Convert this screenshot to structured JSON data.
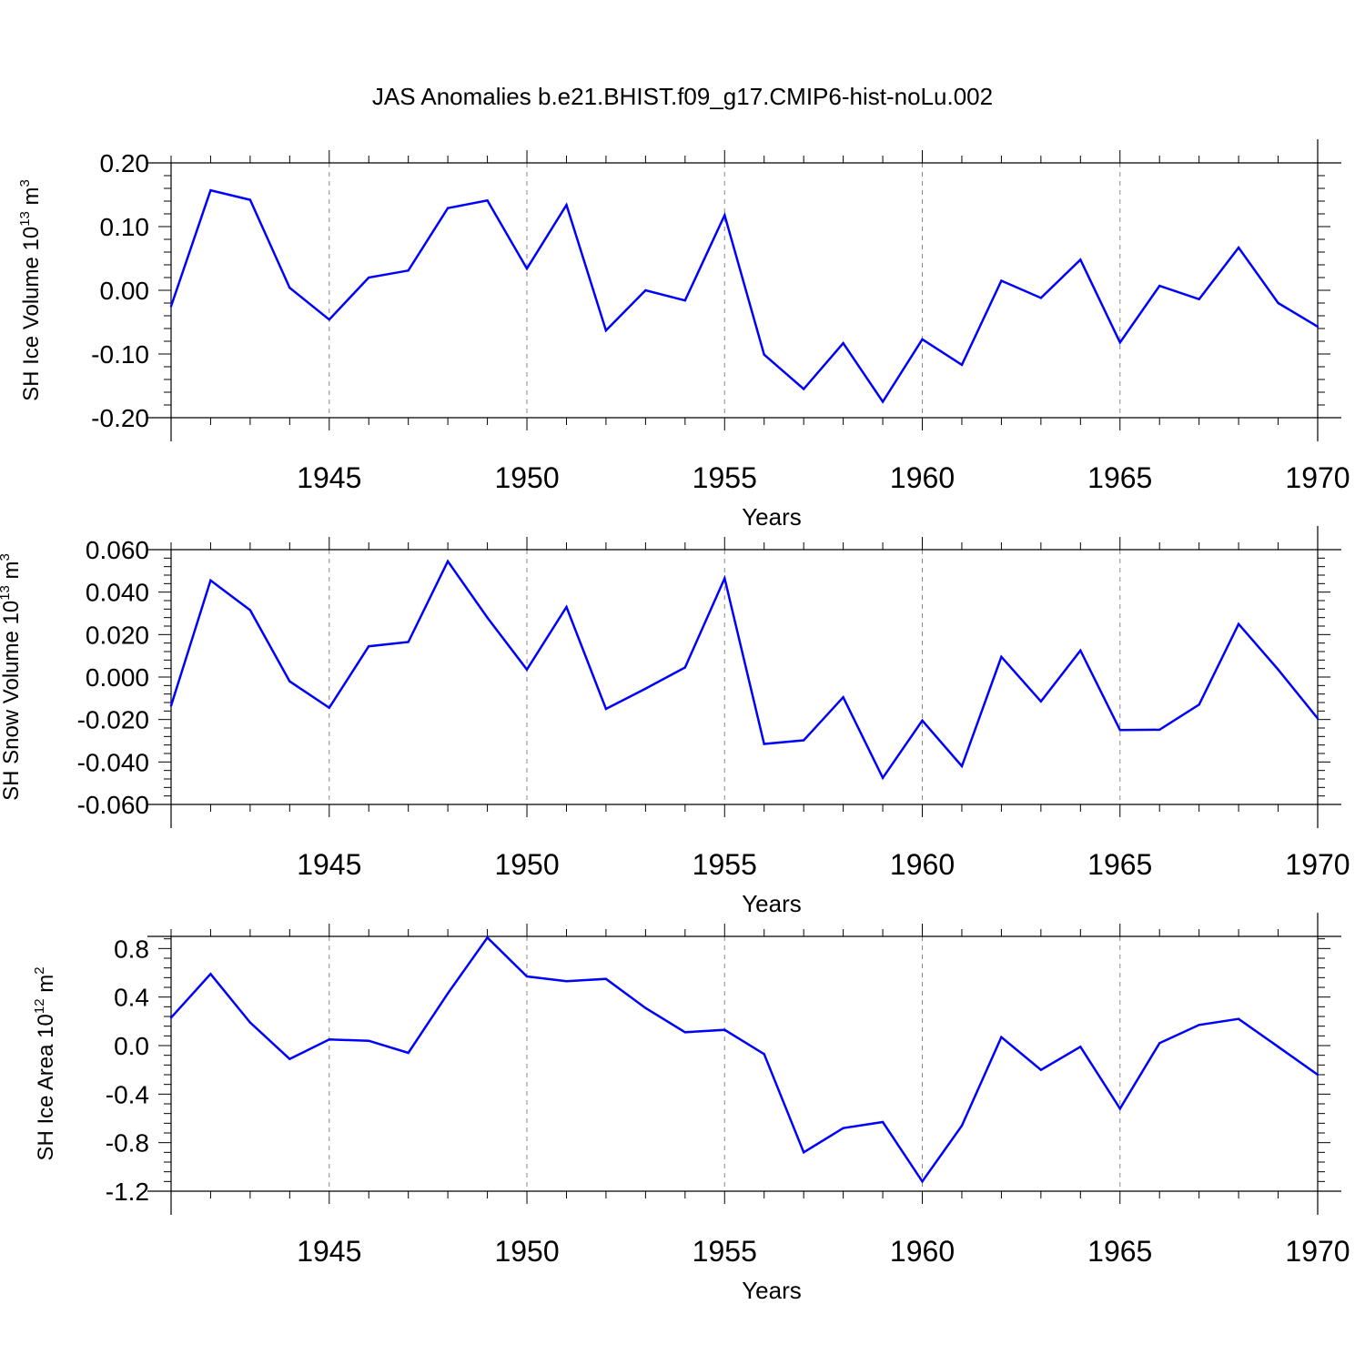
{
  "title": "JAS Anomalies b.e21.BHIST.f09_g17.CMIP6-hist-noLu.002",
  "colors": {
    "line": "#0000ff",
    "axis": "#000000",
    "grid": "#888888"
  },
  "chart_data": [
    {
      "type": "line",
      "ylabel": {
        "main": "SH Ice Volume 10",
        "exp": "13",
        "unit": " m",
        "unit_exp": "3"
      },
      "xlabel": "Years",
      "xlim": [
        1941,
        1970
      ],
      "ylim": [
        -0.2,
        0.2
      ],
      "ytick_values": [
        -0.2,
        -0.1,
        0.0,
        0.1,
        0.2
      ],
      "ytick_labels": [
        "-0.20",
        "-0.10",
        "0.00",
        "0.10",
        "0.20"
      ],
      "xtick_values": [
        1945,
        1950,
        1955,
        1960,
        1965,
        1970
      ],
      "xtick_labels": [
        "1945",
        "1950",
        "1955",
        "1960",
        "1965",
        "1970"
      ],
      "x": [
        1941,
        1942,
        1943,
        1944,
        1945,
        1946,
        1947,
        1948,
        1949,
        1950,
        1951,
        1952,
        1953,
        1954,
        1955,
        1956,
        1957,
        1958,
        1959,
        1960,
        1961,
        1962,
        1963,
        1964,
        1965,
        1966,
        1967,
        1968,
        1969,
        1970
      ],
      "y": [
        -0.025,
        0.157,
        0.142,
        0.004,
        -0.046,
        0.02,
        0.031,
        0.129,
        0.141,
        0.034,
        0.134,
        -0.063,
        0.0,
        -0.016,
        0.118,
        -0.101,
        -0.155,
        -0.083,
        -0.175,
        -0.077,
        -0.117,
        0.015,
        -0.012,
        0.048,
        -0.082,
        0.007,
        -0.014,
        0.067,
        -0.02,
        -0.057
      ]
    },
    {
      "type": "line",
      "ylabel": {
        "main": "SH Snow Volume 10",
        "exp": "13",
        "unit": " m",
        "unit_exp": "3"
      },
      "xlabel": "Years",
      "xlim": [
        1941,
        1970
      ],
      "ylim": [
        -0.06,
        0.06
      ],
      "ytick_values": [
        -0.06,
        -0.04,
        -0.02,
        0.0,
        0.02,
        0.04,
        0.06
      ],
      "ytick_labels": [
        "-0.060",
        "-0.040",
        "-0.020",
        "0.000",
        "0.020",
        "0.040",
        "0.060"
      ],
      "xtick_values": [
        1945,
        1950,
        1955,
        1960,
        1965,
        1970
      ],
      "xtick_labels": [
        "1945",
        "1950",
        "1955",
        "1960",
        "1965",
        "1970"
      ],
      "x": [
        1941,
        1942,
        1943,
        1944,
        1945,
        1946,
        1947,
        1948,
        1949,
        1950,
        1951,
        1952,
        1953,
        1954,
        1955,
        1956,
        1957,
        1958,
        1959,
        1960,
        1961,
        1962,
        1963,
        1964,
        1965,
        1966,
        1967,
        1968,
        1969,
        1970
      ],
      "y": [
        -0.0135,
        0.0455,
        0.0315,
        -0.002,
        -0.0145,
        0.0145,
        0.0165,
        0.0545,
        0.028,
        0.0035,
        0.033,
        -0.015,
        -0.0055,
        0.0045,
        0.0465,
        -0.0315,
        -0.0298,
        -0.0095,
        -0.0475,
        -0.0205,
        -0.042,
        0.0095,
        -0.0115,
        0.0125,
        -0.025,
        -0.0248,
        -0.013,
        0.025,
        0.0035,
        -0.0195
      ]
    },
    {
      "type": "line",
      "ylabel": {
        "main": "SH Ice Area 10",
        "exp": "12",
        "unit": " m",
        "unit_exp": "2"
      },
      "xlabel": "Years",
      "xlim": [
        1941,
        1970
      ],
      "ylim": [
        -1.2,
        0.9
      ],
      "ytick_values": [
        -1.2,
        -0.8,
        -0.4,
        0.0,
        0.4,
        0.8
      ],
      "ytick_labels": [
        "-1.2",
        "-0.8",
        "-0.4",
        "0.0",
        "0.4",
        "0.8"
      ],
      "xtick_values": [
        1945,
        1950,
        1955,
        1960,
        1965,
        1970
      ],
      "xtick_labels": [
        "1945",
        "1950",
        "1955",
        "1960",
        "1965",
        "1970"
      ],
      "x": [
        1941,
        1942,
        1943,
        1944,
        1945,
        1946,
        1947,
        1948,
        1949,
        1950,
        1951,
        1952,
        1953,
        1954,
        1955,
        1956,
        1957,
        1958,
        1959,
        1960,
        1961,
        1962,
        1963,
        1964,
        1965,
        1966,
        1967,
        1968,
        1969,
        1970
      ],
      "y": [
        0.23,
        0.59,
        0.19,
        -0.11,
        0.05,
        0.04,
        -0.06,
        0.43,
        0.89,
        0.57,
        0.53,
        0.55,
        0.31,
        0.11,
        0.13,
        -0.07,
        -0.88,
        -0.68,
        -0.63,
        -1.12,
        -0.66,
        0.07,
        -0.2,
        -0.01,
        -0.52,
        0.02,
        0.17,
        0.22,
        -0.01,
        -0.24
      ]
    }
  ]
}
